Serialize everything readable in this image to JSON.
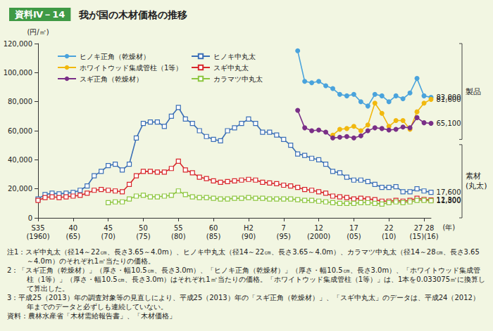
{
  "chart_data": {
    "type": "line",
    "figure_label": "資料Ⅳ－14",
    "title": "我が国の木材価格の推移",
    "ylabel": "(円/㎥)",
    "xlabel": "(年)",
    "categories": [
      "S35\n(1960)",
      null,
      null,
      null,
      null,
      "40\n(65)",
      null,
      null,
      null,
      null,
      "45\n(70)",
      null,
      null,
      null,
      null,
      "50\n(75)",
      null,
      null,
      null,
      null,
      "55\n(80)",
      null,
      null,
      null,
      null,
      "60\n(85)",
      null,
      null,
      null,
      null,
      "H2\n(90)",
      null,
      null,
      null,
      null,
      "7\n(95)",
      null,
      null,
      null,
      null,
      "12\n(2000)",
      null,
      null,
      null,
      null,
      "17\n(05)",
      null,
      null,
      null,
      null,
      "22\n(10)",
      null,
      null,
      null,
      null,
      "27 28\n(15)(16)",
      null
    ],
    "ylim": [
      0,
      120000
    ],
    "yticks": [
      0,
      {
        "value": 20000,
        "label": "20,000"
      },
      {
        "value": 40000,
        "label": "40,000"
      },
      {
        "value": 60000,
        "label": "60,000"
      },
      {
        "value": 80000,
        "label": "80,000"
      },
      {
        "value": 100000,
        "label": "100,000"
      },
      {
        "value": 120000,
        "label": "120,000"
      }
    ],
    "grid": false,
    "legend": "upper left",
    "series": [
      {
        "name": "ヒノキ正角（乾燥材）",
        "color": "#4aa3dc",
        "marker": "circle",
        "values": [
          null,
          null,
          null,
          null,
          null,
          null,
          null,
          null,
          null,
          null,
          null,
          null,
          null,
          null,
          null,
          null,
          null,
          null,
          null,
          null,
          null,
          null,
          null,
          null,
          null,
          null,
          null,
          null,
          null,
          null,
          null,
          null,
          null,
          null,
          null,
          null,
          null,
          115000,
          94000,
          93000,
          94000,
          91000,
          89000,
          85000,
          84000,
          85000,
          80000,
          77000,
          85000,
          84000,
          80000,
          84000,
          82000,
          86000,
          96000,
          84000,
          83000
        ],
        "value_labels": [
          null,
          null,
          null,
          null,
          null,
          null,
          null,
          null,
          null,
          null,
          null,
          null,
          null,
          null,
          null,
          null,
          null,
          null,
          null,
          null,
          null,
          null,
          null,
          null,
          null,
          null,
          null,
          null,
          null,
          null,
          null,
          null,
          null,
          null,
          null,
          null,
          null,
          null,
          null,
          null,
          null,
          null,
          null,
          null,
          null,
          null,
          null,
          null,
          null,
          null,
          null,
          null,
          null,
          null,
          null,
          null,
          "83,000"
        ]
      },
      {
        "name": "ヒノキ中丸太",
        "color": "#3b6fb6",
        "marker": "open_square",
        "values": [
          13000,
          16000,
          17000,
          16500,
          17000,
          17500,
          19000,
          22000,
          29000,
          32000,
          36000,
          37000,
          33000,
          37000,
          55000,
          65000,
          66000,
          66000,
          63000,
          70000,
          76000,
          68000,
          65000,
          60000,
          56000,
          54000,
          53000,
          60000,
          62000,
          65000,
          68000,
          65000,
          59000,
          59000,
          57000,
          54000,
          50000,
          44000,
          43000,
          41000,
          40000,
          37000,
          32000,
          31000,
          28000,
          26000,
          26000,
          25000,
          23000,
          21000,
          21000,
          21500,
          18000,
          18000,
          20000,
          18500,
          17600
        ],
        "value_labels": [
          null,
          null,
          null,
          null,
          null,
          null,
          null,
          null,
          null,
          null,
          null,
          null,
          null,
          null,
          null,
          null,
          null,
          null,
          null,
          null,
          null,
          null,
          null,
          null,
          null,
          null,
          null,
          null,
          null,
          null,
          null,
          null,
          null,
          null,
          null,
          null,
          null,
          null,
          null,
          null,
          null,
          null,
          null,
          null,
          null,
          null,
          null,
          null,
          null,
          null,
          null,
          null,
          null,
          null,
          null,
          null,
          "17,600"
        ]
      },
      {
        "name": "ホワイトウッド集成管柱（1等）",
        "color": "#f1b80e",
        "marker": "circle",
        "values": [
          null,
          null,
          null,
          null,
          null,
          null,
          null,
          null,
          null,
          null,
          null,
          null,
          null,
          null,
          null,
          null,
          null,
          null,
          null,
          null,
          null,
          null,
          null,
          null,
          null,
          null,
          null,
          null,
          null,
          null,
          null,
          null,
          null,
          null,
          null,
          null,
          null,
          null,
          null,
          null,
          null,
          null,
          57000,
          61000,
          61500,
          63000,
          60000,
          64000,
          79000,
          72000,
          63000,
          67000,
          67000,
          61000,
          73000,
          79000,
          81600
        ],
        "value_labels": [
          null,
          null,
          null,
          null,
          null,
          null,
          null,
          null,
          null,
          null,
          null,
          null,
          null,
          null,
          null,
          null,
          null,
          null,
          null,
          null,
          null,
          null,
          null,
          null,
          null,
          null,
          null,
          null,
          null,
          null,
          null,
          null,
          null,
          null,
          null,
          null,
          null,
          null,
          null,
          null,
          null,
          null,
          null,
          null,
          null,
          null,
          null,
          null,
          null,
          null,
          null,
          null,
          null,
          null,
          null,
          null,
          "81,600"
        ]
      },
      {
        "name": "スギ中丸太",
        "color": "#d8262b",
        "marker": "open_square",
        "values": [
          12000,
          14000,
          14500,
          14000,
          14500,
          15000,
          15500,
          17000,
          19000,
          19500,
          19000,
          18500,
          18000,
          23000,
          29000,
          32000,
          32000,
          31500,
          31500,
          34000,
          39000,
          33000,
          31000,
          28000,
          27000,
          25500,
          24500,
          25000,
          25500,
          26000,
          26500,
          26000,
          24500,
          24000,
          23500,
          22500,
          22000,
          21000,
          19500,
          19000,
          18000,
          17000,
          15000,
          14500,
          14000,
          13000,
          13500,
          13000,
          12500,
          11500,
          11500,
          12000,
          11500,
          12000,
          13500,
          12700,
          12300
        ],
        "value_labels": [
          null,
          null,
          null,
          null,
          null,
          null,
          null,
          null,
          null,
          null,
          null,
          null,
          null,
          null,
          null,
          null,
          null,
          null,
          null,
          null,
          null,
          null,
          null,
          null,
          null,
          null,
          null,
          null,
          null,
          null,
          null,
          null,
          null,
          null,
          null,
          null,
          null,
          null,
          null,
          null,
          null,
          null,
          null,
          null,
          null,
          null,
          null,
          null,
          null,
          null,
          null,
          null,
          null,
          null,
          null,
          null,
          "12,300"
        ]
      },
      {
        "name": "スギ正角（乾燥材）",
        "color": "#7a2f87",
        "marker": "circle",
        "values": [
          null,
          null,
          null,
          null,
          null,
          null,
          null,
          null,
          null,
          null,
          null,
          null,
          null,
          null,
          null,
          null,
          null,
          null,
          null,
          null,
          null,
          null,
          null,
          null,
          null,
          null,
          null,
          null,
          null,
          null,
          null,
          null,
          null,
          null,
          null,
          null,
          null,
          74000,
          62000,
          60000,
          60500,
          59000,
          55000,
          55500,
          56000,
          55000,
          56500,
          60000,
          62000,
          61500,
          60500,
          61000,
          62500,
          62000,
          69000,
          65500,
          65100
        ],
        "value_labels": [
          null,
          null,
          null,
          null,
          null,
          null,
          null,
          null,
          null,
          null,
          null,
          null,
          null,
          null,
          null,
          null,
          null,
          null,
          null,
          null,
          null,
          null,
          null,
          null,
          null,
          null,
          null,
          null,
          null,
          null,
          null,
          null,
          null,
          null,
          null,
          null,
          null,
          null,
          null,
          null,
          null,
          null,
          null,
          null,
          null,
          null,
          null,
          null,
          null,
          null,
          null,
          null,
          null,
          null,
          null,
          null,
          "65,100"
        ]
      },
      {
        "name": "カラマツ中丸太",
        "color": "#8dc63f",
        "marker": "open_square",
        "values": [
          null,
          null,
          null,
          null,
          null,
          null,
          null,
          null,
          null,
          null,
          10500,
          11000,
          11000,
          13000,
          15000,
          15500,
          14500,
          14500,
          15000,
          15500,
          18500,
          16000,
          14500,
          14000,
          14000,
          13500,
          13000,
          13000,
          13500,
          13500,
          14000,
          13500,
          13500,
          13000,
          13000,
          13000,
          13000,
          12500,
          12000,
          12000,
          11500,
          11000,
          10500,
          10000,
          10000,
          10000,
          10500,
          10500,
          10000,
          9500,
          10500,
          11000,
          10500,
          11000,
          12000,
          12000,
          11800
        ],
        "value_labels": [
          null,
          null,
          null,
          null,
          null,
          null,
          null,
          null,
          null,
          null,
          null,
          null,
          null,
          null,
          null,
          null,
          null,
          null,
          null,
          null,
          null,
          null,
          null,
          null,
          null,
          null,
          null,
          null,
          null,
          null,
          null,
          null,
          null,
          null,
          null,
          null,
          null,
          null,
          null,
          null,
          null,
          null,
          null,
          null,
          null,
          null,
          null,
          null,
          null,
          null,
          null,
          null,
          null,
          null,
          null,
          null,
          "11,800"
        ]
      }
    ],
    "annotations": [
      "製品",
      "素材\n(丸太)"
    ],
    "notes": [
      {
        "label": "注1：",
        "text": "スギ中丸太（径14～22㎝、長さ3.65～4.0m）、ヒノキ中丸太（径14～22㎝、長さ3.65～4.0m）、カラマツ中丸太（径14～28㎝、長さ3.65～4.0m）のそれぞれ1㎥当たりの価格。"
      },
      {
        "label": "2：",
        "text": "「スギ正角（乾燥材）」（厚さ・幅10.5㎝、長さ3.0m）、「ヒノキ正角（乾燥材）」（厚さ・幅10.5㎝、長さ3.0m）、「ホワイトウッド集成管柱（1等）」（厚さ・幅10.5㎝、長さ3.0m）はそれぞれ1㎥当たりの価格。「ホワイトウッド集成管柱（1等）」は、1本を0.033075㎥に換算して算出した。"
      },
      {
        "label": "3：",
        "text": "平成25（2013）年の調査対象等の見直しにより、平成25（2013）年の「スギ正角（乾燥材）」、「スギ中丸太」のデータは、平成24（2012）年までのデータと必ずしも連続していない。"
      }
    ],
    "source": {
      "label": "資料：",
      "text": "農林水産省「木材需給報告書」、「木材価格」"
    }
  }
}
